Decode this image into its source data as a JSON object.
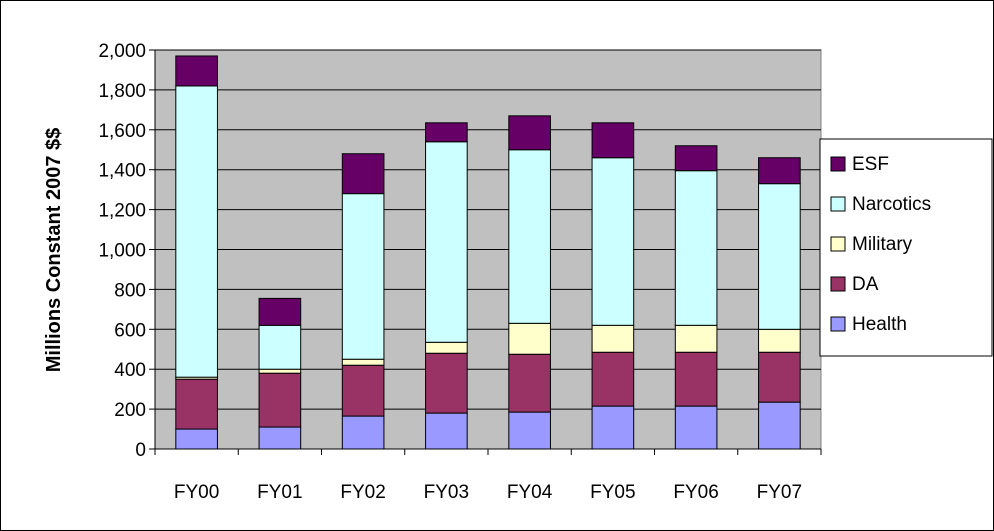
{
  "chart_data": {
    "type": "bar",
    "stacked": true,
    "title": "",
    "xlabel": "",
    "ylabel": "Millions Constant 2007 $$",
    "ylim": [
      0,
      2000
    ],
    "ytick_step": 200,
    "ytick_labels": [
      "0",
      "200",
      "400",
      "600",
      "800",
      "1,000",
      "1,200",
      "1,400",
      "1,600",
      "1,800",
      "2,000"
    ],
    "categories": [
      "FY00",
      "FY01",
      "FY02",
      "FY03",
      "FY04",
      "FY05",
      "FY06",
      "FY07"
    ],
    "series": [
      {
        "name": "Health",
        "color": "#9999FF",
        "values": [
          100,
          110,
          165,
          180,
          185,
          215,
          215,
          235
        ]
      },
      {
        "name": "DA",
        "color": "#993366",
        "values": [
          250,
          270,
          255,
          300,
          290,
          270,
          270,
          250
        ]
      },
      {
        "name": "Military",
        "color": "#FFFFCC",
        "values": [
          10,
          20,
          30,
          55,
          155,
          135,
          135,
          115
        ]
      },
      {
        "name": "Narcotics",
        "color": "#CCFFFF",
        "values": [
          1460,
          220,
          830,
          1005,
          870,
          840,
          775,
          730
        ]
      },
      {
        "name": "ESF",
        "color": "#660066",
        "values": [
          150,
          135,
          200,
          95,
          170,
          175,
          125,
          130
        ]
      }
    ],
    "legend_order": [
      "ESF",
      "Narcotics",
      "Military",
      "DA",
      "Health"
    ],
    "legend_position": "right",
    "grid": "horizontal",
    "plot_background": "#C0C0C0"
  }
}
